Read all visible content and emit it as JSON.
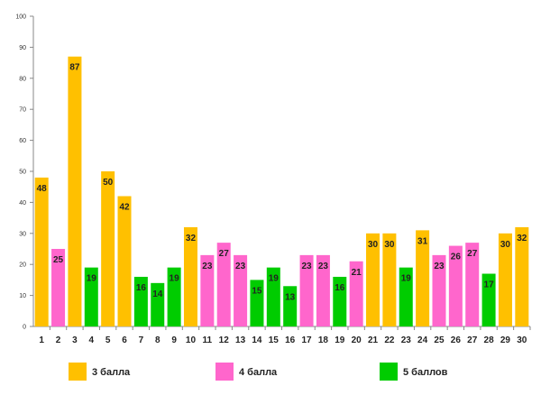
{
  "chart_data": {
    "type": "bar",
    "title": "",
    "xlabel": "",
    "ylabel": "",
    "ylim": [
      0,
      100
    ],
    "yticks": [
      0,
      10,
      20,
      30,
      40,
      50,
      60,
      70,
      80,
      90,
      100
    ],
    "categories": [
      "1",
      "2",
      "3",
      "4",
      "5",
      "6",
      "7",
      "8",
      "9",
      "10",
      "11",
      "12",
      "13",
      "14",
      "15",
      "16",
      "17",
      "18",
      "19",
      "20",
      "21",
      "22",
      "23",
      "24",
      "25",
      "26",
      "27",
      "28",
      "29",
      "30"
    ],
    "values": [
      48,
      25,
      87,
      19,
      50,
      42,
      16,
      14,
      19,
      32,
      23,
      27,
      23,
      15,
      19,
      13,
      23,
      23,
      16,
      21,
      30,
      30,
      19,
      31,
      23,
      26,
      27,
      17,
      30,
      32
    ],
    "groups": [
      "3",
      "4",
      "3",
      "5",
      "3",
      "3",
      "5",
      "5",
      "5",
      "3",
      "4",
      "4",
      "4",
      "5",
      "5",
      "5",
      "4",
      "4",
      "5",
      "4",
      "3",
      "3",
      "5",
      "3",
      "4",
      "4",
      "4",
      "5",
      "3",
      "3"
    ],
    "legend": [
      {
        "key": "3",
        "label": "3 балла",
        "color": "#FFC000"
      },
      {
        "key": "4",
        "label": "4 балла",
        "color": "#FF66CC"
      },
      {
        "key": "5",
        "label": "5 баллов",
        "color": "#00CC00"
      }
    ],
    "grid": false,
    "legend_position": "bottom"
  }
}
